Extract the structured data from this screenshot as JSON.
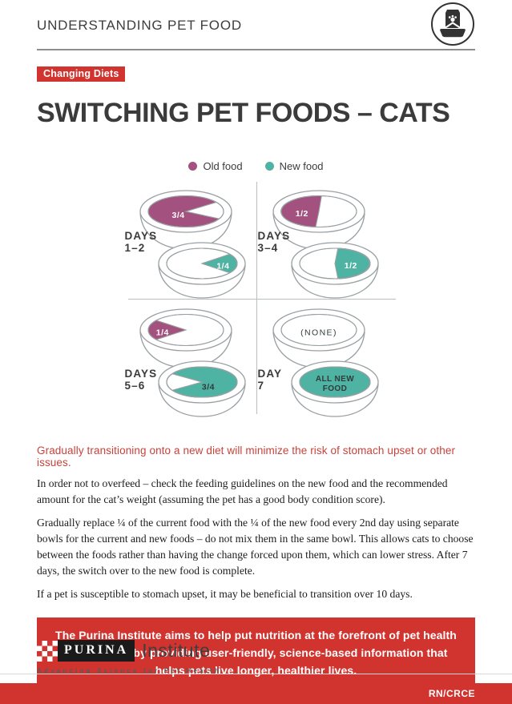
{
  "header": {
    "kicker": "UNDERSTANDING PET FOOD",
    "badge": "Changing Diets",
    "title": "SWITCHING PET FOODS – CATS"
  },
  "colors": {
    "accent_red": "#d1332e",
    "old_food": "#a3517e",
    "new_food": "#4fb3a3",
    "lead_red": "#c9423a"
  },
  "diagram": {
    "legend": [
      {
        "id": "old",
        "label": "Old food"
      },
      {
        "id": "new",
        "label": "New food"
      }
    ],
    "quadrants": [
      {
        "day_word": "DAYS",
        "day_range": "1–2",
        "top_bowl": {
          "food": "old",
          "portion": "3/4",
          "layout": "most-gap-right"
        },
        "bottom_bowl": {
          "food": "new",
          "portion": "1/4",
          "layout": "wedge-right"
        }
      },
      {
        "day_word": "DAYS",
        "day_range": "3–4",
        "top_bowl": {
          "food": "old",
          "portion": "1/2",
          "layout": "half-left"
        },
        "bottom_bowl": {
          "food": "new",
          "portion": "1/2",
          "layout": "half-right"
        }
      },
      {
        "day_word": "DAYS",
        "day_range": "5–6",
        "top_bowl": {
          "food": "old",
          "portion": "1/4",
          "layout": "wedge-left"
        },
        "bottom_bowl": {
          "food": "new",
          "portion": "3/4",
          "layout": "most-gap-left"
        }
      },
      {
        "day_word": "DAY",
        "day_range": "7",
        "top_bowl": {
          "food": "none",
          "portion": "(NONE)",
          "layout": "empty"
        },
        "bottom_bowl": {
          "food": "new",
          "portion": "ALL NEW FOOD",
          "layout": "full"
        }
      }
    ]
  },
  "body": {
    "lead": "Gradually transitioning onto a new diet will minimize the risk of stomach upset or other issues.",
    "paragraphs": [
      "In order not to overfeed – check the feeding guidelines on the new food and the recommended amount for the cat’s weight (assuming the pet has a good body condition score).",
      "Gradually replace ¼ of the current food with the ¼ of the new food every 2nd day using separate bowls for the current and new foods – do not mix them in the same bowl. This allows cats to choose between the foods rather than having the change forced upon them, which can lower stress. After 7 days, the switch over to the new food is complete.",
      "If a pet is susceptible to stomach upset, it may be beneficial to transition over 10 days."
    ]
  },
  "banner": {
    "text": "The Purina Institute aims to help put nutrition at the forefront of pet health discussions by providing user-friendly, science-based information that helps pets live longer, healthier lives."
  },
  "footer": {
    "brand": "PURINA",
    "brand_suffix": "Institute",
    "tagline": "Advancing Science for Pet Health",
    "code": "RN/CRCE"
  }
}
